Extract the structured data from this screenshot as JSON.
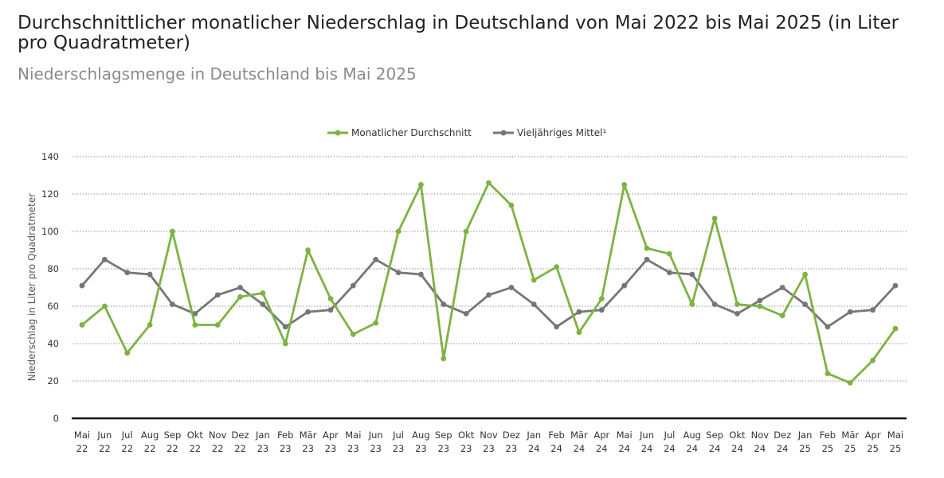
{
  "chart_data": {
    "type": "line",
    "title": "Durchschnittlicher monatlicher Niederschlag in Deutschland von Mai 2022 bis Mai 2025 (in Liter pro Quadratmeter)",
    "subtitle": "Niederschlagsmenge in Deutschland bis Mai 2025",
    "ylabel": "Niederschlag in Liter pro Quadratmeter",
    "ylim": [
      0,
      140
    ],
    "yticks": [
      0,
      20,
      40,
      60,
      80,
      100,
      120,
      140
    ],
    "grid": true,
    "legend_position": "top-center",
    "categories": [
      [
        "Mai",
        "22"
      ],
      [
        "Jun",
        "22"
      ],
      [
        "Jul",
        "22"
      ],
      [
        "Aug",
        "22"
      ],
      [
        "Sep",
        "22"
      ],
      [
        "Okt",
        "22"
      ],
      [
        "Nov",
        "22"
      ],
      [
        "Dez",
        "22"
      ],
      [
        "Jan",
        "23"
      ],
      [
        "Feb",
        "23"
      ],
      [
        "Mär",
        "23"
      ],
      [
        "Apr",
        "23"
      ],
      [
        "Mai",
        "23"
      ],
      [
        "Jun",
        "23"
      ],
      [
        "Jul",
        "23"
      ],
      [
        "Aug",
        "23"
      ],
      [
        "Sep",
        "23"
      ],
      [
        "Okt",
        "23"
      ],
      [
        "Nov",
        "23"
      ],
      [
        "Dez",
        "23"
      ],
      [
        "Jan",
        "24"
      ],
      [
        "Feb",
        "24"
      ],
      [
        "Mär",
        "24"
      ],
      [
        "Apr",
        "24"
      ],
      [
        "Mai",
        "24"
      ],
      [
        "Jun",
        "24"
      ],
      [
        "Jul",
        "24"
      ],
      [
        "Aug",
        "24"
      ],
      [
        "Sep",
        "24"
      ],
      [
        "Okt",
        "24"
      ],
      [
        "Nov",
        "24"
      ],
      [
        "Dez",
        "24"
      ],
      [
        "Jan",
        "25"
      ],
      [
        "Feb",
        "25"
      ],
      [
        "Mär",
        "25"
      ],
      [
        "Apr",
        "25"
      ],
      [
        "Mai",
        "25"
      ]
    ],
    "series": [
      {
        "name": "Monatlicher Durchschnitt",
        "color": "#7cb342",
        "values": [
          50,
          60,
          35,
          50,
          100,
          50,
          50,
          65,
          67,
          40,
          90,
          64,
          45,
          51,
          100,
          125,
          32,
          100,
          126,
          114,
          74,
          81,
          46,
          64,
          125,
          91,
          88,
          61,
          107,
          61,
          60,
          55,
          77,
          24,
          19,
          31,
          48
        ]
      },
      {
        "name": "Vieljähriges Mittel¹",
        "color": "#767676",
        "values": [
          71,
          85,
          78,
          77,
          61,
          56,
          66,
          70,
          61,
          49,
          57,
          58,
          71,
          85,
          78,
          77,
          61,
          56,
          66,
          70,
          61,
          49,
          57,
          58,
          71,
          85,
          78,
          77,
          61,
          56,
          63,
          70,
          61,
          49,
          57,
          58,
          71
        ]
      }
    ]
  }
}
